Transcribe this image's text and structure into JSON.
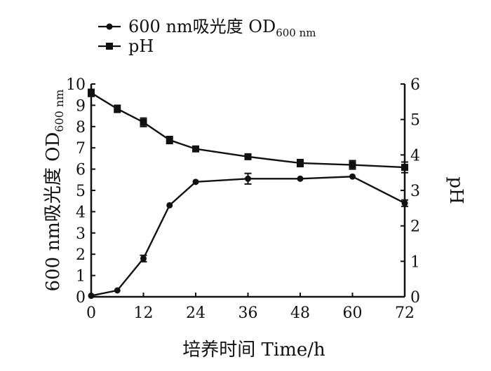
{
  "chart_data": {
    "type": "line",
    "x": [
      0,
      6,
      12,
      18,
      24,
      36,
      48,
      60,
      72
    ],
    "xlabel": "培养时间  Time/h",
    "x_ticks": [
      "0",
      "12",
      "24",
      "36",
      "48",
      "60",
      "72"
    ],
    "xlim": [
      0,
      72
    ],
    "ylabel_left_main": "600 nm吸光度  OD",
    "ylabel_left_sub": "600 nm",
    "y_left_ticks": [
      "0",
      "1",
      "2",
      "3",
      "4",
      "5",
      "6",
      "7",
      "8",
      "9",
      "10"
    ],
    "ylim_left": [
      0,
      10
    ],
    "ylabel_right": "pH",
    "y_right_ticks": [
      "0",
      "1",
      "2",
      "3",
      "4",
      "5",
      "6"
    ],
    "ylim_right": [
      0,
      6
    ],
    "grid": false,
    "legend_position": "top-left",
    "series": [
      {
        "name_main": "600 nm吸光度  OD",
        "name_sub": "600 nm",
        "marker": "circle",
        "axis": "left",
        "values": [
          0.05,
          0.3,
          1.8,
          4.3,
          5.4,
          5.55,
          5.55,
          5.65,
          4.4
        ],
        "errors": [
          0,
          0,
          0.15,
          0,
          0,
          0.25,
          0,
          0,
          0.15
        ]
      },
      {
        "name": "pH",
        "marker": "square",
        "axis": "right",
        "values": [
          5.75,
          5.3,
          4.92,
          4.42,
          4.17,
          3.95,
          3.77,
          3.72,
          3.65
        ],
        "errors": [
          0.1,
          0.1,
          0.12,
          0.1,
          0,
          0,
          0.1,
          0.12,
          0.15
        ]
      }
    ]
  }
}
